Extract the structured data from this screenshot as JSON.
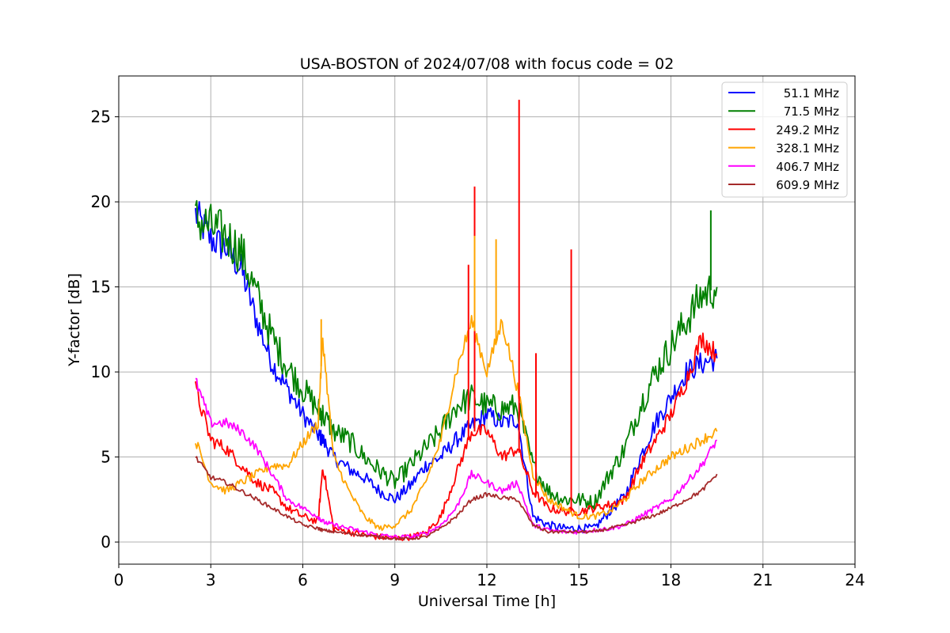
{
  "chart_data": {
    "type": "line",
    "title": "USA-BOSTON of 2024/07/08 with focus code = 02",
    "xlabel": "Universal Time [h]",
    "ylabel": "Y-factor [dB]",
    "xlim": [
      0,
      24
    ],
    "ylim": [
      -1.3,
      27.4
    ],
    "xticks": [
      "0",
      "3",
      "6",
      "9",
      "12",
      "15",
      "18",
      "21",
      "24"
    ],
    "yticks": [
      "0",
      "5",
      "10",
      "15",
      "20",
      "25"
    ],
    "grid": true,
    "legend_position": "top-right",
    "x": [
      2.5,
      3,
      3.5,
      4,
      4.5,
      5,
      5.5,
      6,
      6.5,
      6.65,
      7,
      7.5,
      8,
      8.5,
      9,
      9.5,
      10,
      10.5,
      11,
      11.5,
      12,
      12.5,
      13,
      13.5,
      14,
      14.5,
      15,
      15.5,
      16,
      16.5,
      17,
      17.5,
      18,
      18.5,
      19,
      19.5
    ],
    "series": [
      {
        "name": "51.1 MHz",
        "color": "#0000ff",
        "values": [
          19.3,
          17.8,
          17.3,
          16.0,
          13.0,
          10.5,
          9.0,
          7.5,
          6.3,
          6.0,
          5.0,
          4.3,
          3.8,
          3.0,
          2.5,
          3.3,
          4.5,
          5.0,
          6.0,
          6.8,
          7.5,
          7.0,
          7.2,
          1.5,
          1.0,
          0.8,
          0.8,
          0.8,
          1.8,
          2.7,
          5.0,
          7.0,
          8.5,
          10.0,
          10.5,
          10.8
        ]
      },
      {
        "name": "71.5 MHz",
        "color": "#008000",
        "values": [
          19.0,
          18.5,
          18.0,
          17.0,
          14.5,
          12.0,
          10.3,
          9.0,
          7.8,
          7.5,
          6.5,
          6.0,
          5.0,
          4.2,
          3.5,
          4.5,
          5.5,
          6.5,
          8.0,
          8.5,
          8.0,
          7.8,
          8.0,
          4.5,
          3.0,
          2.5,
          2.5,
          2.3,
          4.0,
          5.5,
          8.0,
          10.0,
          11.5,
          13.0,
          14.5,
          15.0
        ]
      },
      {
        "name": "249.2 MHz",
        "color": "#ff0000",
        "values": [
          9.0,
          6.0,
          5.5,
          4.5,
          3.5,
          3.0,
          2.0,
          1.5,
          1.2,
          4.5,
          0.8,
          0.6,
          0.4,
          0.3,
          0.2,
          0.3,
          0.5,
          1.5,
          4.0,
          6.5,
          6.5,
          5.0,
          5.5,
          3.0,
          2.0,
          1.8,
          1.8,
          2.0,
          2.2,
          2.5,
          4.5,
          6.0,
          7.5,
          9.5,
          12.0,
          11.0
        ]
      },
      {
        "name": "328.1 MHz",
        "color": "#ffa500",
        "values": [
          6.0,
          3.5,
          3.0,
          3.5,
          4.0,
          4.5,
          4.5,
          5.8,
          7.0,
          12.0,
          5.0,
          3.0,
          1.5,
          0.8,
          1.0,
          1.8,
          3.5,
          6.0,
          10.0,
          13.0,
          10.0,
          13.0,
          9.0,
          4.0,
          2.5,
          2.0,
          1.5,
          1.5,
          1.8,
          2.5,
          3.5,
          4.3,
          5.0,
          5.5,
          6.0,
          6.5
        ]
      },
      {
        "name": "406.7 MHz",
        "color": "#ff00ff",
        "values": [
          9.5,
          7.0,
          7.0,
          6.5,
          5.5,
          4.0,
          2.5,
          2.0,
          1.5,
          1.2,
          1.0,
          0.8,
          0.6,
          0.4,
          0.3,
          0.3,
          0.5,
          1.0,
          2.0,
          4.0,
          3.5,
          3.0,
          3.5,
          1.0,
          0.7,
          0.6,
          0.6,
          0.7,
          0.8,
          1.0,
          1.5,
          2.0,
          2.5,
          3.5,
          4.5,
          6.0
        ]
      },
      {
        "name": "609.9 MHz",
        "color": "#a52a2a",
        "values": [
          5.0,
          3.8,
          3.5,
          3.0,
          2.5,
          2.0,
          1.5,
          1.0,
          0.8,
          0.7,
          0.6,
          0.5,
          0.4,
          0.3,
          0.2,
          0.2,
          0.3,
          0.8,
          1.5,
          2.5,
          2.8,
          2.6,
          2.5,
          1.0,
          0.6,
          0.6,
          0.6,
          0.6,
          0.8,
          1.0,
          1.3,
          1.6,
          2.0,
          2.5,
          3.0,
          4.0
        ]
      }
    ],
    "spikes": [
      {
        "series": "249.2 MHz",
        "x": 11.4,
        "y": 16.3
      },
      {
        "series": "249.2 MHz",
        "x": 11.6,
        "y": 20.9
      },
      {
        "series": "249.2 MHz",
        "x": 13.05,
        "y": 26.0
      },
      {
        "series": "249.2 MHz",
        "x": 13.6,
        "y": 11.1
      },
      {
        "series": "249.2 MHz",
        "x": 14.75,
        "y": 17.2
      },
      {
        "series": "328.1 MHz",
        "x": 6.6,
        "y": 13.1
      },
      {
        "series": "328.1 MHz",
        "x": 11.6,
        "y": 18.0
      },
      {
        "series": "328.1 MHz",
        "x": 12.3,
        "y": 17.8
      },
      {
        "series": "71.5 MHz",
        "x": 19.3,
        "y": 19.5
      }
    ]
  }
}
